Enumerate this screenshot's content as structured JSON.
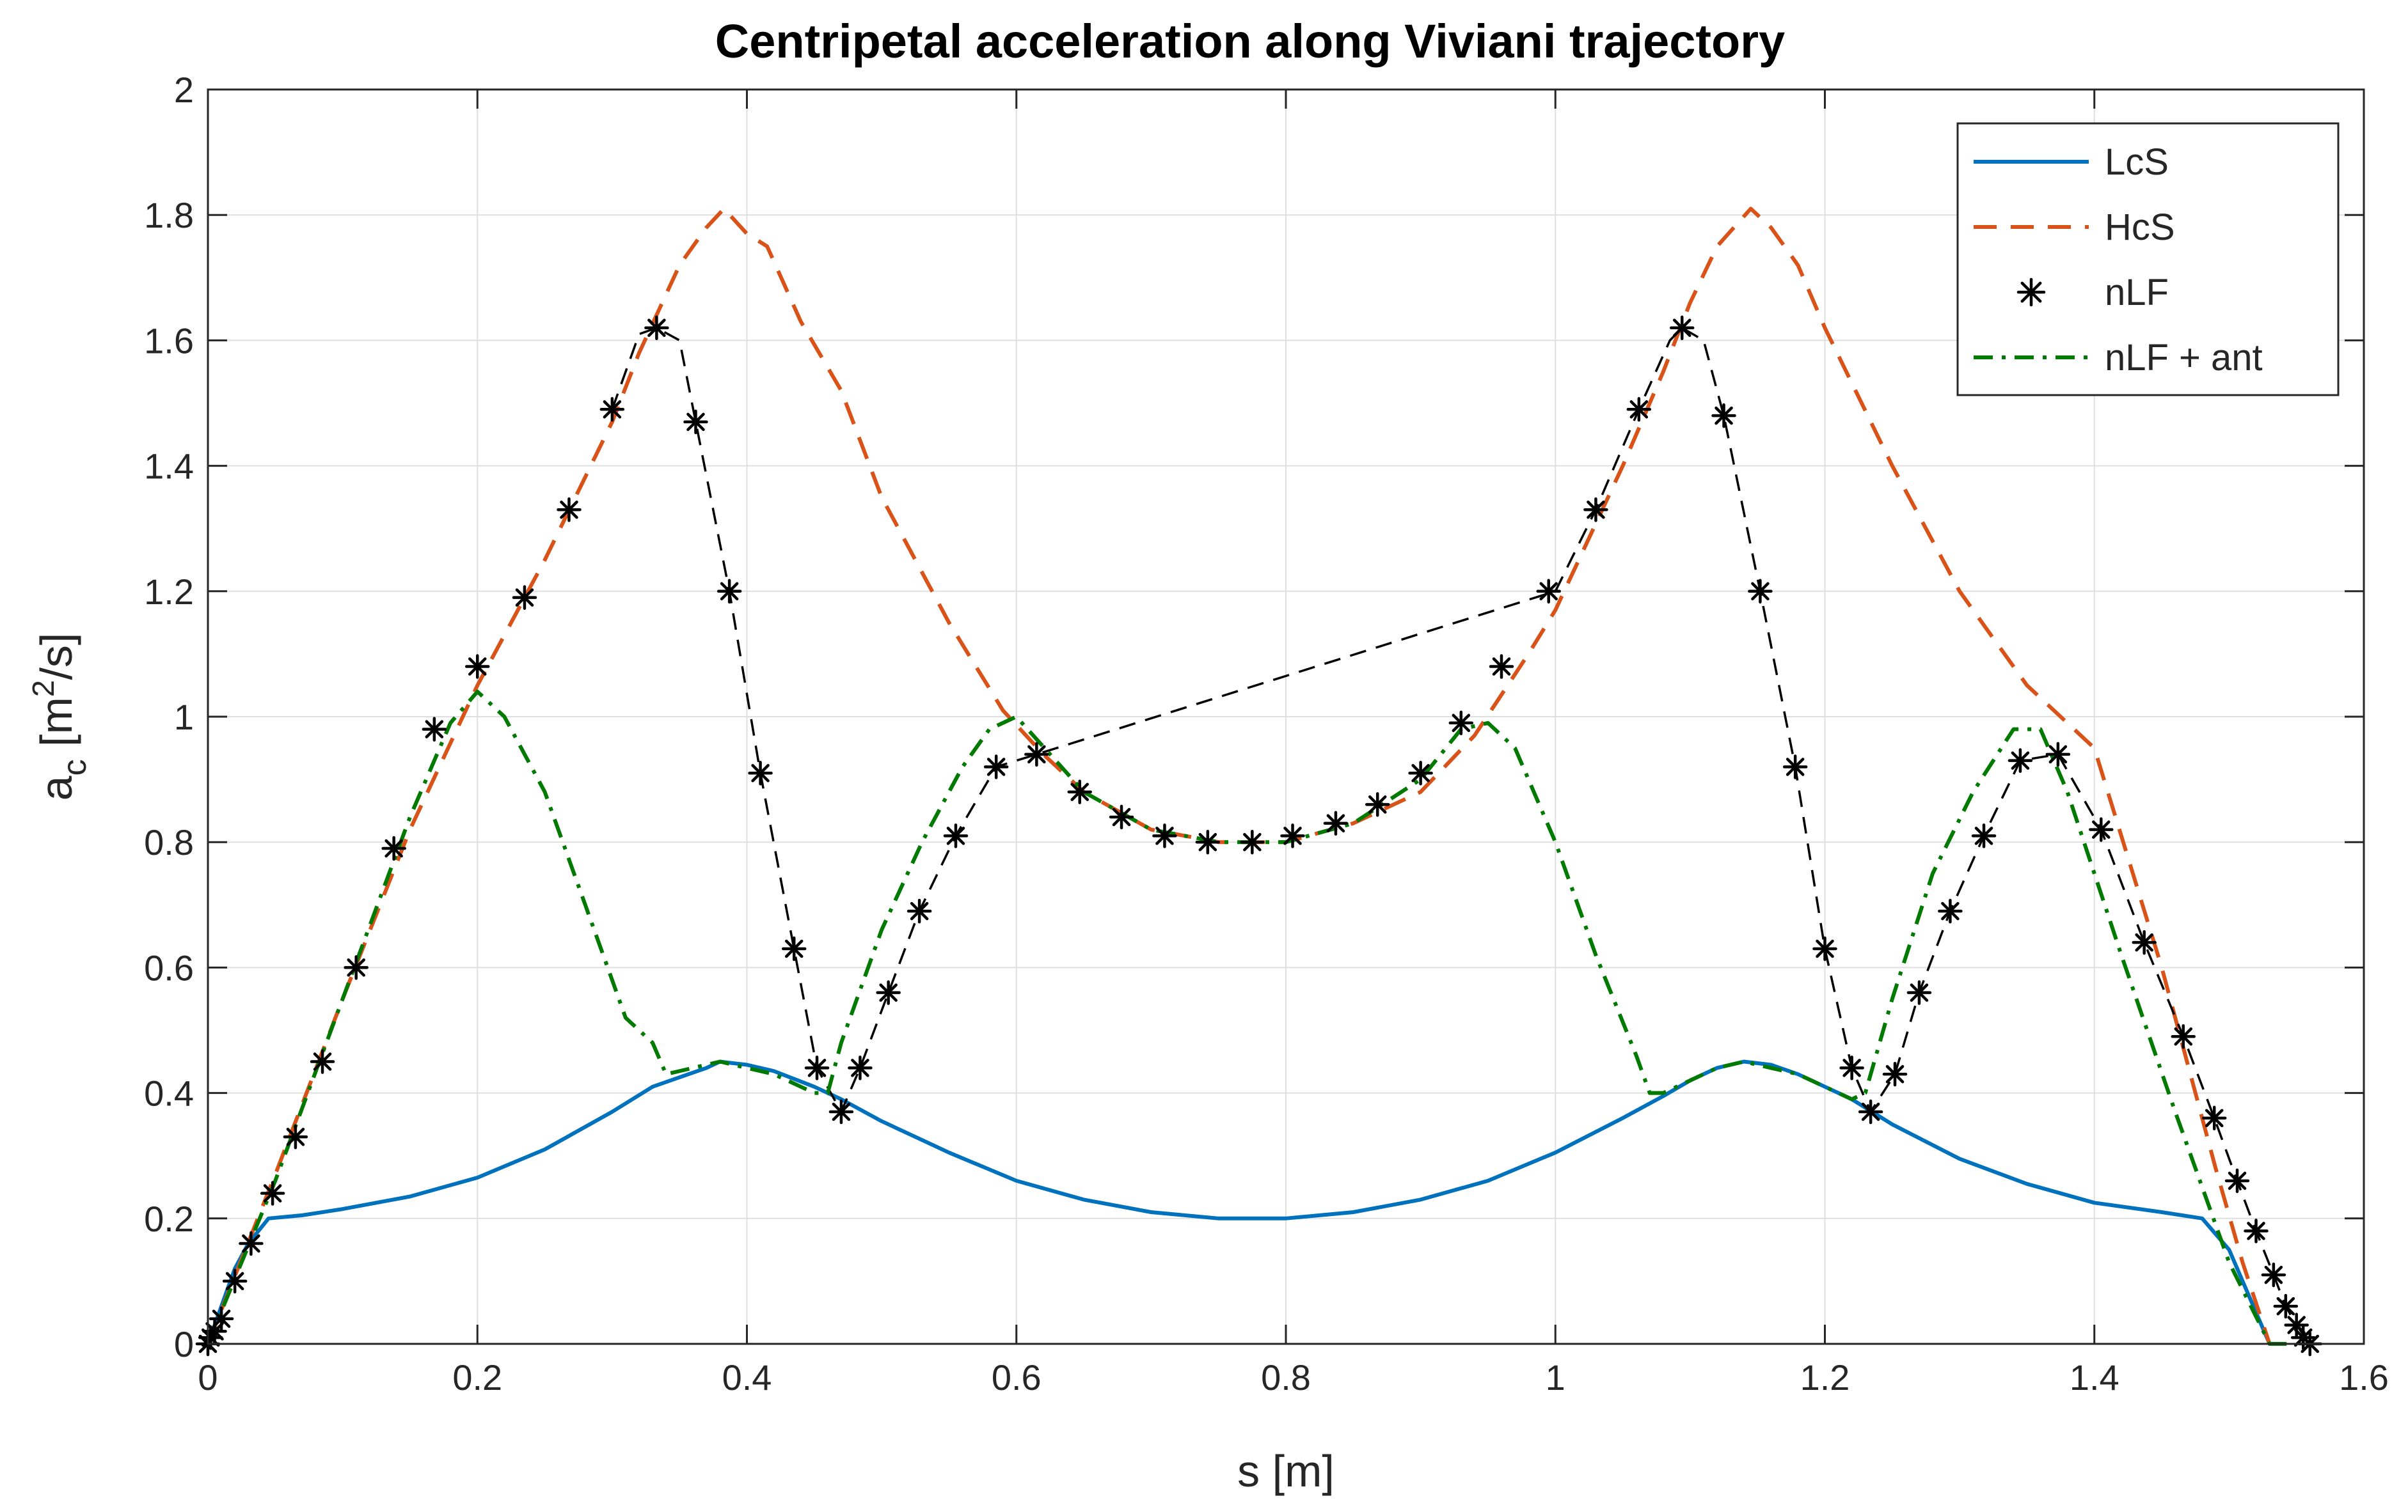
{
  "chart_data": {
    "type": "line",
    "title": "Centripetal acceleration along Viviani trajectory",
    "xlabel": "s [m]",
    "ylabel": {
      "base": "a",
      "sub": "c",
      "unit_prefix": " [m",
      "sup": "2",
      "unit_suffix": "/s]"
    },
    "xlim": [
      0,
      1.6
    ],
    "ylim": [
      0,
      2
    ],
    "xticks": [
      0,
      0.2,
      0.4,
      0.6,
      0.8,
      1,
      1.2,
      1.4,
      1.6
    ],
    "xtick_labels": [
      "0",
      "0.2",
      "0.4",
      "0.6",
      "0.8",
      "1",
      "1.2",
      "1.4",
      "1.6"
    ],
    "yticks": [
      0,
      0.2,
      0.4,
      0.6,
      0.8,
      1,
      1.2,
      1.4,
      1.6,
      1.8,
      2
    ],
    "ytick_labels": [
      "0",
      "0.2",
      "0.4",
      "0.6",
      "0.8",
      "1",
      "1.2",
      "1.4",
      "1.6",
      "1.8",
      "2"
    ],
    "grid": true,
    "legend_position": "top-right",
    "series": [
      {
        "name": "LcS",
        "style": "solid",
        "color": "#0072BD",
        "x": [
          0,
          0.01,
          0.02,
          0.03,
          0.045,
          0.07,
          0.1,
          0.15,
          0.2,
          0.25,
          0.3,
          0.33,
          0.35,
          0.37,
          0.38,
          0.4,
          0.42,
          0.45,
          0.47,
          0.5,
          0.55,
          0.6,
          0.65,
          0.7,
          0.75,
          0.8,
          0.85,
          0.9,
          0.95,
          1.0,
          1.05,
          1.08,
          1.1,
          1.12,
          1.14,
          1.16,
          1.18,
          1.2,
          1.22,
          1.25,
          1.3,
          1.35,
          1.4,
          1.45,
          1.48,
          1.5,
          1.52,
          1.53
        ],
        "y": [
          0,
          0.06,
          0.12,
          0.16,
          0.2,
          0.205,
          0.215,
          0.235,
          0.265,
          0.31,
          0.37,
          0.41,
          0.425,
          0.44,
          0.45,
          0.445,
          0.435,
          0.41,
          0.39,
          0.355,
          0.305,
          0.26,
          0.23,
          0.21,
          0.2,
          0.2,
          0.21,
          0.23,
          0.26,
          0.305,
          0.36,
          0.395,
          0.42,
          0.44,
          0.45,
          0.445,
          0.43,
          0.41,
          0.39,
          0.35,
          0.295,
          0.255,
          0.225,
          0.21,
          0.2,
          0.15,
          0.05,
          0
        ]
      },
      {
        "name": "HcS",
        "style": "dashed",
        "color": "#D95319",
        "x": [
          0,
          0.05,
          0.1,
          0.15,
          0.2,
          0.25,
          0.3,
          0.32,
          0.35,
          0.37,
          0.383,
          0.4,
          0.415,
          0.44,
          0.47,
          0.5,
          0.55,
          0.59,
          0.62,
          0.65,
          0.7,
          0.75,
          0.8,
          0.85,
          0.9,
          0.94,
          0.98,
          1.0,
          1.05,
          1.08,
          1.1,
          1.12,
          1.145,
          1.16,
          1.18,
          1.2,
          1.25,
          1.3,
          1.35,
          1.4,
          1.45,
          1.49,
          1.51,
          1.53
        ],
        "y": [
          0,
          0.27,
          0.55,
          0.82,
          1.05,
          1.25,
          1.47,
          1.58,
          1.72,
          1.78,
          1.81,
          1.77,
          1.75,
          1.63,
          1.52,
          1.35,
          1.15,
          1.01,
          0.94,
          0.88,
          0.82,
          0.8,
          0.8,
          0.83,
          0.88,
          0.97,
          1.1,
          1.17,
          1.4,
          1.55,
          1.66,
          1.75,
          1.81,
          1.78,
          1.72,
          1.62,
          1.4,
          1.2,
          1.05,
          0.95,
          0.6,
          0.28,
          0.13,
          0
        ]
      },
      {
        "name": "nLF",
        "style": "markers",
        "color": "#000000",
        "x": [
          0.0,
          0.002,
          0.005,
          0.01,
          0.02,
          0.032,
          0.048,
          0.065,
          0.085,
          0.11,
          0.138,
          0.168,
          0.2,
          0.235,
          0.268,
          0.3,
          0.333,
          0.362,
          0.387,
          0.41,
          0.435,
          0.452,
          0.47,
          0.484,
          0.505,
          0.528,
          0.555,
          0.585,
          0.615,
          0.647,
          0.678,
          0.71,
          0.742,
          0.775,
          0.805,
          0.837,
          0.868,
          0.9,
          0.93,
          0.96,
          0.995,
          1.03,
          1.062,
          1.094,
          1.125,
          1.152,
          1.178,
          1.2,
          1.22,
          1.234,
          1.252,
          1.27,
          1.293,
          1.318,
          1.345,
          1.373,
          1.405,
          1.437,
          1.466,
          1.489,
          1.506,
          1.52,
          1.533,
          1.542,
          1.55,
          1.555,
          1.56
        ],
        "y": [
          0.0,
          0.01,
          0.02,
          0.04,
          0.1,
          0.16,
          0.24,
          0.33,
          0.45,
          0.6,
          0.79,
          0.98,
          1.08,
          1.19,
          1.33,
          1.49,
          1.62,
          1.47,
          1.2,
          0.91,
          0.63,
          0.44,
          0.37,
          0.44,
          0.56,
          0.69,
          0.81,
          0.92,
          0.94,
          0.88,
          0.84,
          0.81,
          0.8,
          0.8,
          0.81,
          0.83,
          0.86,
          0.91,
          0.99,
          1.08,
          1.2,
          1.33,
          1.49,
          1.62,
          1.48,
          1.2,
          0.92,
          0.63,
          0.44,
          0.37,
          0.43,
          0.56,
          0.69,
          0.81,
          0.93,
          0.94,
          0.82,
          0.64,
          0.49,
          0.36,
          0.26,
          0.18,
          0.11,
          0.06,
          0.03,
          0.01,
          0.0
        ]
      },
      {
        "name": "nLF + ant",
        "style": "dashdot",
        "color": "#007A00",
        "x": [
          0,
          0.05,
          0.1,
          0.15,
          0.18,
          0.2,
          0.22,
          0.25,
          0.28,
          0.3,
          0.31,
          0.33,
          0.34,
          0.36,
          0.38,
          0.4,
          0.42,
          0.45,
          0.46,
          0.47,
          0.5,
          0.53,
          0.56,
          0.58,
          0.6,
          0.65,
          0.7,
          0.75,
          0.8,
          0.85,
          0.9,
          0.93,
          0.95,
          0.97,
          1.0,
          1.03,
          1.06,
          1.07,
          1.08,
          1.1,
          1.12,
          1.14,
          1.16,
          1.18,
          1.2,
          1.22,
          1.23,
          1.25,
          1.28,
          1.31,
          1.34,
          1.36,
          1.38,
          1.42,
          1.46,
          1.5,
          1.53,
          1.545
        ],
        "y": [
          0,
          0.26,
          0.55,
          0.84,
          0.99,
          1.04,
          1.0,
          0.88,
          0.7,
          0.58,
          0.52,
          0.48,
          0.43,
          0.44,
          0.45,
          0.44,
          0.43,
          0.4,
          0.4,
          0.48,
          0.66,
          0.8,
          0.92,
          0.98,
          1.0,
          0.88,
          0.82,
          0.8,
          0.8,
          0.83,
          0.9,
          0.98,
          0.99,
          0.95,
          0.8,
          0.62,
          0.46,
          0.4,
          0.4,
          0.42,
          0.44,
          0.45,
          0.44,
          0.43,
          0.41,
          0.39,
          0.4,
          0.55,
          0.75,
          0.88,
          0.98,
          0.98,
          0.88,
          0.62,
          0.37,
          0.13,
          0.0,
          0.0
        ]
      },
      {
        "name": "",
        "style": "thin-dashed-connector",
        "color": "#000000",
        "x": [
          0.3,
          0.32,
          0.333,
          0.35,
          0.362,
          0.387,
          0.41,
          0.435,
          0.452,
          0.47,
          0.484,
          0.505,
          0.528,
          0.555,
          0.585,
          0.615,
          1.0,
          1.03,
          1.062,
          1.085,
          1.094,
          1.11,
          1.125,
          1.152,
          1.178,
          1.2,
          1.22,
          1.234,
          1.252,
          1.27,
          1.293,
          1.318,
          1.345,
          1.373,
          1.405,
          1.437,
          1.466,
          1.489,
          1.506,
          1.52,
          1.533,
          1.542,
          1.55,
          1.56
        ],
        "y": [
          1.49,
          1.61,
          1.62,
          1.6,
          1.47,
          1.2,
          0.91,
          0.63,
          0.44,
          0.37,
          0.44,
          0.56,
          0.69,
          0.81,
          0.92,
          0.94,
          1.2,
          1.33,
          1.49,
          1.6,
          1.62,
          1.6,
          1.48,
          1.2,
          0.92,
          0.63,
          0.44,
          0.37,
          0.43,
          0.56,
          0.69,
          0.81,
          0.93,
          0.94,
          0.82,
          0.64,
          0.49,
          0.36,
          0.26,
          0.18,
          0.11,
          0.06,
          0.03,
          0.0
        ]
      }
    ],
    "legend": [
      "LcS",
      "HcS",
      "nLF",
      "nLF + ant"
    ]
  }
}
